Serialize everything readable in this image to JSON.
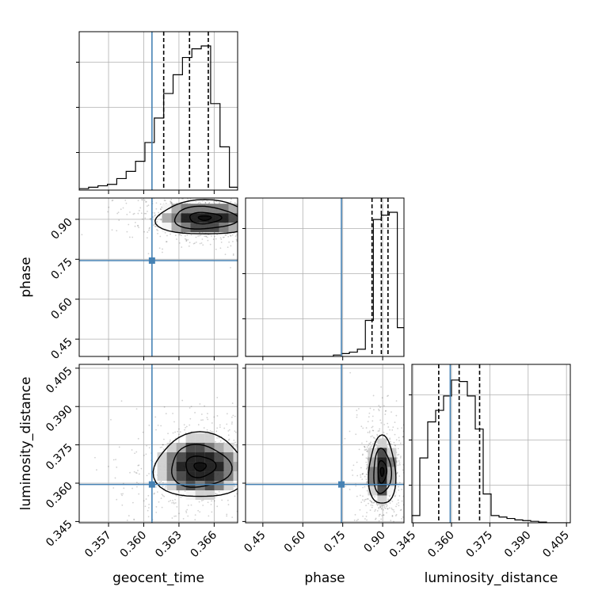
{
  "colors": {
    "truth": "#4682b4",
    "hist": "#000000",
    "grid": "#b0b0b0",
    "scatter": "#000000",
    "density_levels": [
      "#f4f4f4",
      "#d0d0d0",
      "#a8a8a8",
      "#787878",
      "#444444",
      "#1a1a1a"
    ]
  },
  "chart_data": {
    "type": "corner",
    "parameters": [
      {
        "name": "geocent_time",
        "label": "geocent_time",
        "range": [
          0.3545,
          0.368
        ],
        "ticks": [
          0.357,
          0.36,
          0.363,
          0.366
        ],
        "tick_labels": [
          "0.357",
          "0.360",
          "0.363",
          "0.366"
        ],
        "truth": 0.3607,
        "quantiles": [
          0.3617,
          0.3639,
          0.3655
        ]
      },
      {
        "name": "phase",
        "label": "phase",
        "range": [
          0.385,
          0.98
        ],
        "ticks": [
          0.45,
          0.6,
          0.75,
          0.9
        ],
        "tick_labels": [
          "0.45",
          "0.60",
          "0.75",
          "0.90"
        ],
        "truth": 0.745,
        "quantiles": [
          0.86,
          0.895,
          0.92
        ]
      },
      {
        "name": "luminosity_distance",
        "label": "luminosity_distance",
        "range": [
          0.3445,
          0.4065
        ],
        "ticks": [
          0.345,
          0.36,
          0.375,
          0.39,
          0.405
        ],
        "tick_labels": [
          "0.345",
          "0.360",
          "0.375",
          "0.390",
          "0.405"
        ],
        "truth": 0.3595,
        "quantiles": [
          0.355,
          0.363,
          0.371
        ]
      }
    ],
    "histograms": [
      {
        "param": "geocent_time",
        "bins": [
          0.3545,
          0.3553,
          0.3561,
          0.3569,
          0.3577,
          0.3585,
          0.3593,
          0.3601,
          0.3609,
          0.3617,
          0.3625,
          0.3633,
          0.3641,
          0.3649,
          0.3657,
          0.3665,
          0.3673,
          0.368
        ],
        "counts": [
          0.01,
          0.02,
          0.03,
          0.04,
          0.08,
          0.13,
          0.2,
          0.33,
          0.5,
          0.67,
          0.8,
          0.92,
          0.98,
          1.0,
          0.6,
          0.3,
          0.02
        ]
      },
      {
        "param": "phase",
        "bins": [
          0.385,
          0.415,
          0.445,
          0.475,
          0.505,
          0.535,
          0.565,
          0.595,
          0.625,
          0.655,
          0.685,
          0.715,
          0.745,
          0.775,
          0.805,
          0.835,
          0.865,
          0.895,
          0.925,
          0.955,
          0.98
        ],
        "counts": [
          0.0,
          0.0,
          0.0,
          0.0,
          0.0,
          0.0,
          0.0,
          0.0,
          0.0,
          0.0,
          0.0,
          0.01,
          0.02,
          0.03,
          0.05,
          0.25,
          0.95,
          0.98,
          1.0,
          0.2
        ]
      },
      {
        "param": "luminosity_distance",
        "bins": [
          0.3445,
          0.3476,
          0.3507,
          0.3538,
          0.3569,
          0.36,
          0.3631,
          0.3662,
          0.3693,
          0.3724,
          0.3755,
          0.3786,
          0.3817,
          0.3848,
          0.3879,
          0.391,
          0.3941,
          0.3972,
          0.4003,
          0.4034,
          0.4065
        ],
        "counts": [
          0.05,
          0.45,
          0.7,
          0.78,
          0.88,
          0.99,
          0.98,
          0.88,
          0.65,
          0.2,
          0.05,
          0.04,
          0.03,
          0.02,
          0.015,
          0.01,
          0.005,
          0.0,
          0.0,
          0.0
        ]
      }
    ],
    "pairs": [
      {
        "x": "geocent_time",
        "y": "phase",
        "center": [
          0.3652,
          0.905
        ],
        "sigma": [
          0.0018,
          0.028
        ],
        "corr": 0.2
      },
      {
        "x": "geocent_time",
        "y": "luminosity_distance",
        "center": [
          0.3648,
          0.3665
        ],
        "sigma": [
          0.0017,
          0.0055
        ],
        "corr": -0.1
      },
      {
        "x": "phase",
        "y": "luminosity_distance",
        "center": [
          0.898,
          0.3645
        ],
        "sigma": [
          0.022,
          0.0058
        ],
        "corr": 0.0
      }
    ]
  }
}
